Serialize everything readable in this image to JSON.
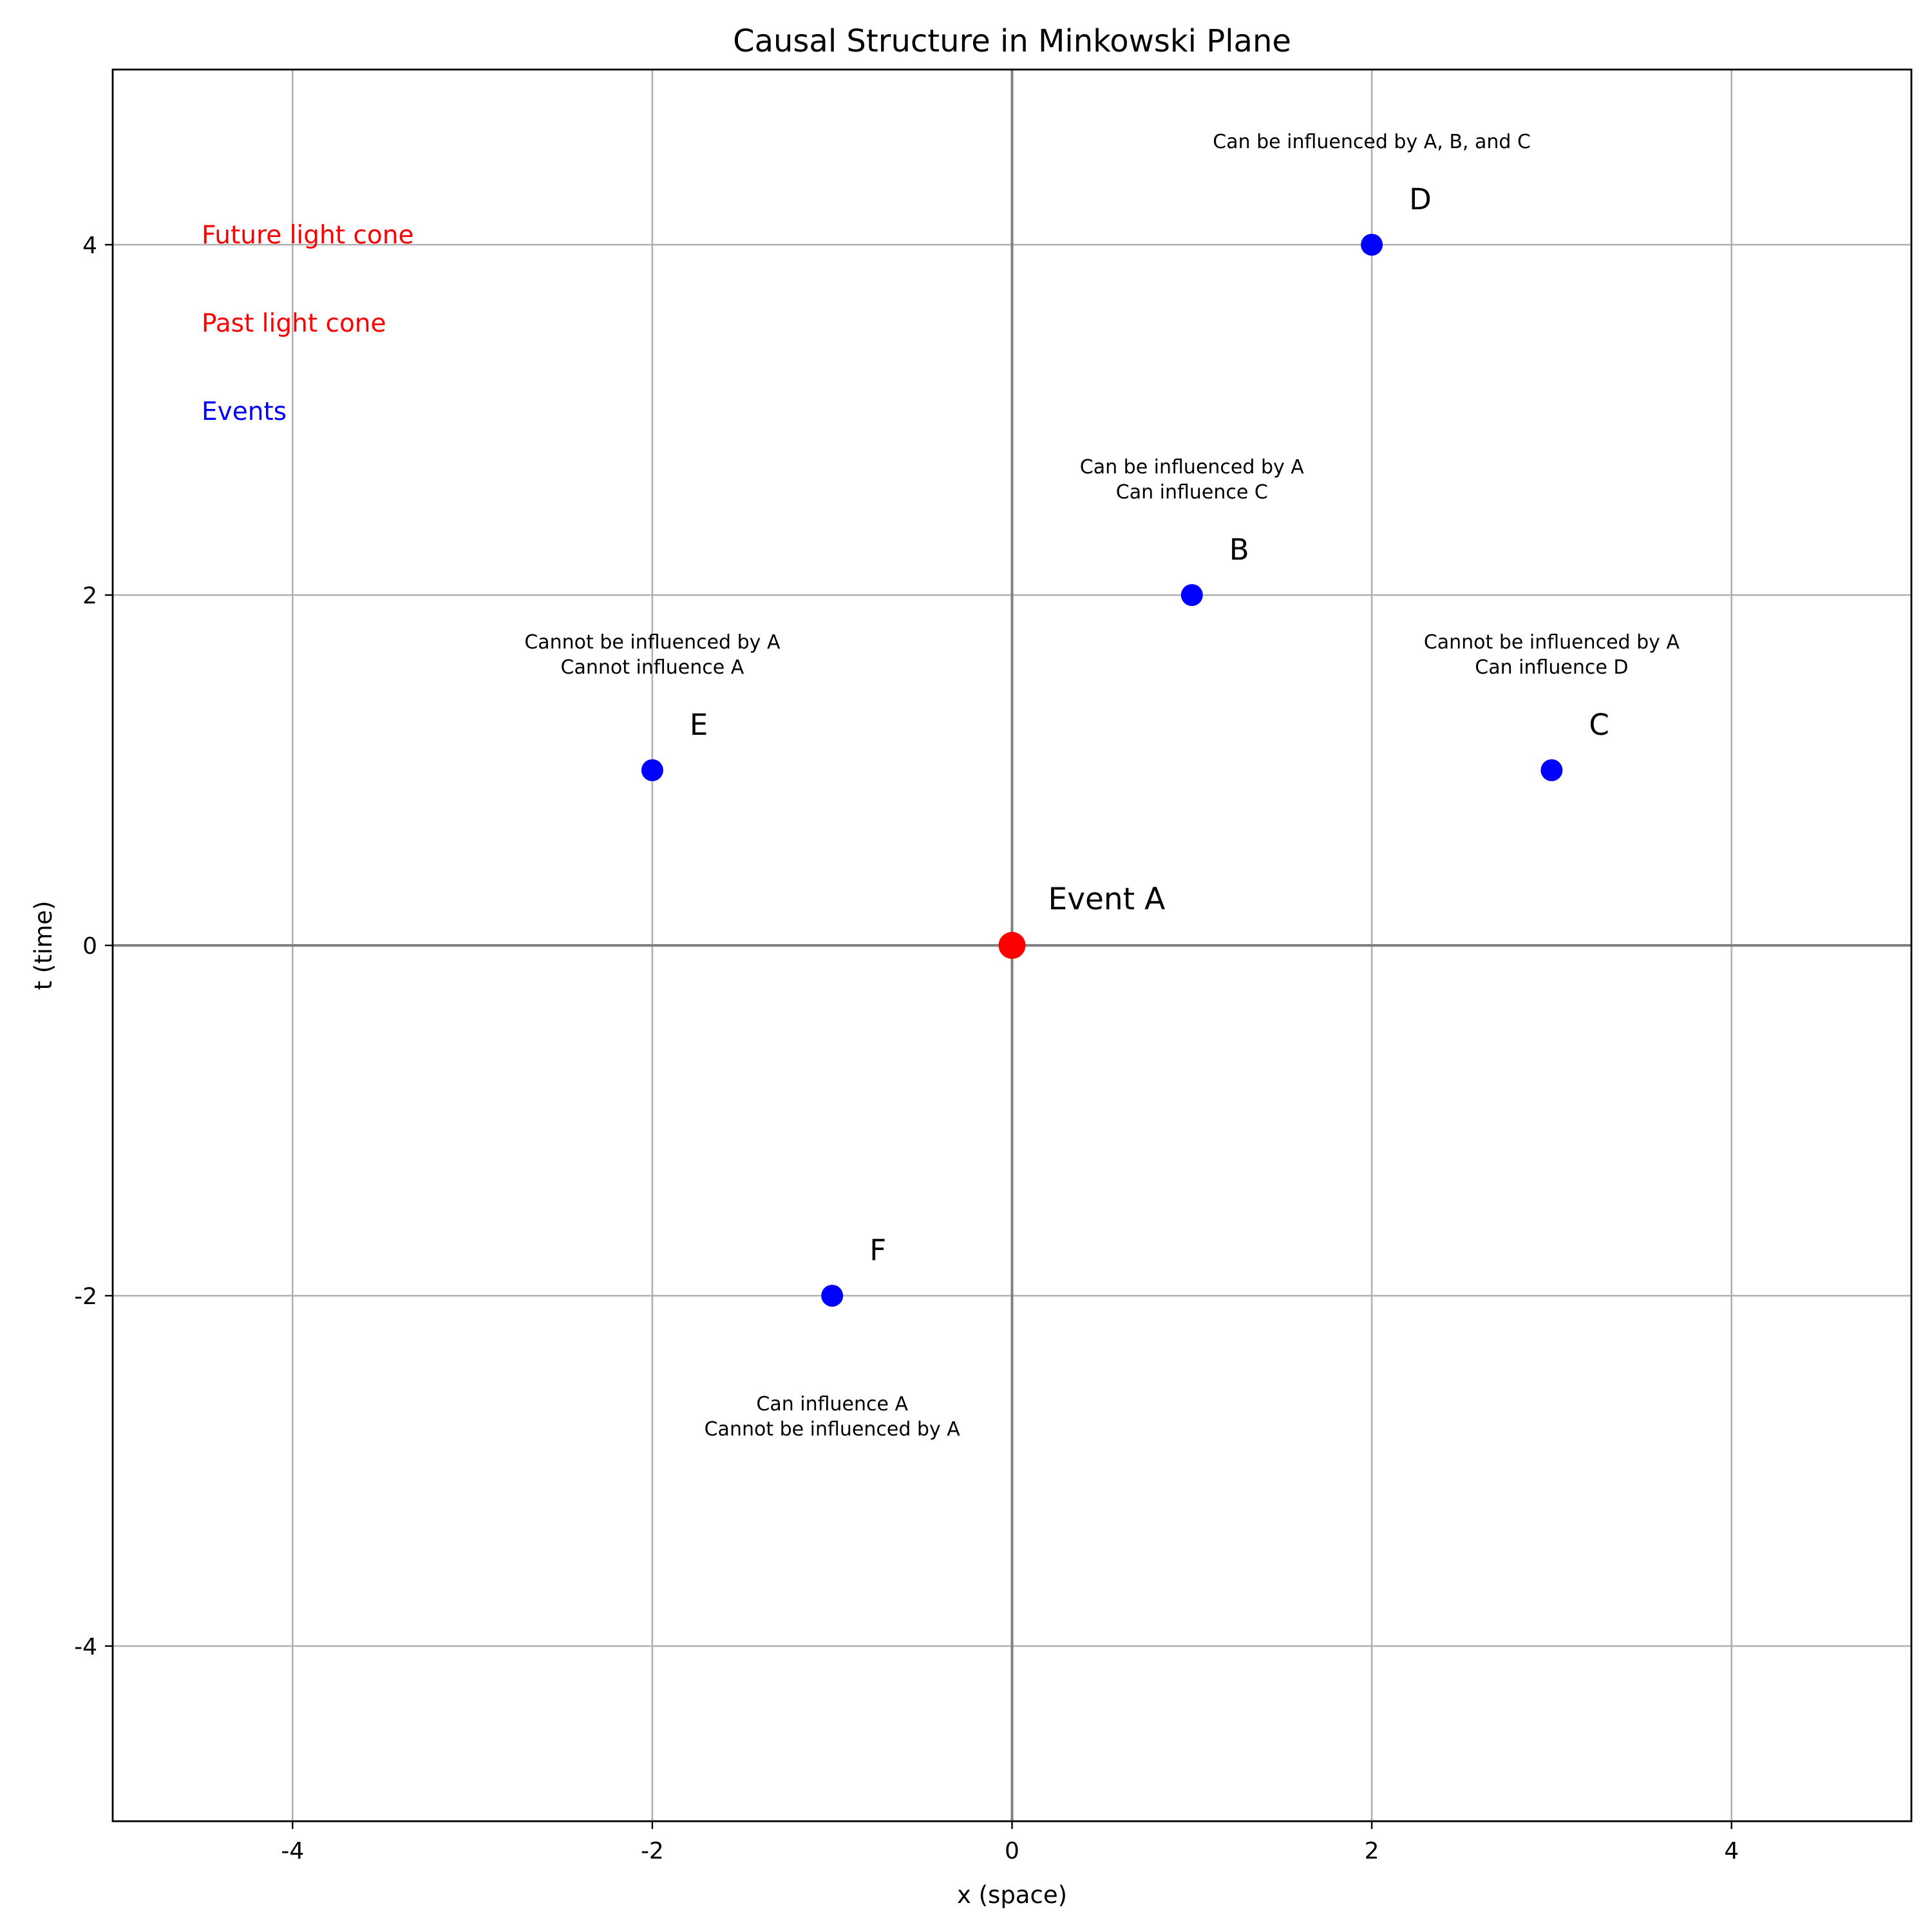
{
  "chart_data": {
    "type": "scatter",
    "title": "Causal Structure in Minkowski Plane",
    "xlabel": "x (space)",
    "ylabel": "t (time)",
    "xlim": [
      -5,
      5
    ],
    "ylim": [
      -5,
      5
    ],
    "xticks": [
      -4,
      -2,
      0,
      2,
      4
    ],
    "yticks": [
      -4,
      -2,
      0,
      2,
      4
    ],
    "grid": true,
    "colors": {
      "origin": "#ff0000",
      "events": "#0000ff",
      "legend_cones": "#ff0000",
      "legend_events": "#0000ff"
    },
    "origin_event": {
      "label": "Event A",
      "x": 0,
      "t": 0
    },
    "events": [
      {
        "label": "B",
        "x": 1,
        "t": 2,
        "note": [
          "Can be influenced by A",
          "Can influence C"
        ],
        "note_position": "above"
      },
      {
        "label": "C",
        "x": 3,
        "t": 1,
        "note": [
          "Cannot be influenced by A",
          "Can influence D"
        ],
        "note_position": "above"
      },
      {
        "label": "D",
        "x": 2,
        "t": 4,
        "note": [
          "Can be influenced by A, B, and C"
        ],
        "note_position": "above"
      },
      {
        "label": "E",
        "x": -2,
        "t": 1,
        "note": [
          "Cannot be influenced by A",
          "Cannot influence A"
        ],
        "note_position": "above"
      },
      {
        "label": "F",
        "x": -1,
        "t": -2,
        "note": [
          "Can influence A",
          "Cannot be influenced by A"
        ],
        "note_position": "below"
      }
    ],
    "legend": {
      "placement": "top-left",
      "entries": [
        {
          "text": "Future light cone",
          "color": "#ff0000"
        },
        {
          "text": "Past light cone",
          "color": "#ff0000"
        },
        {
          "text": "Events",
          "color": "#0000ff"
        }
      ]
    }
  }
}
